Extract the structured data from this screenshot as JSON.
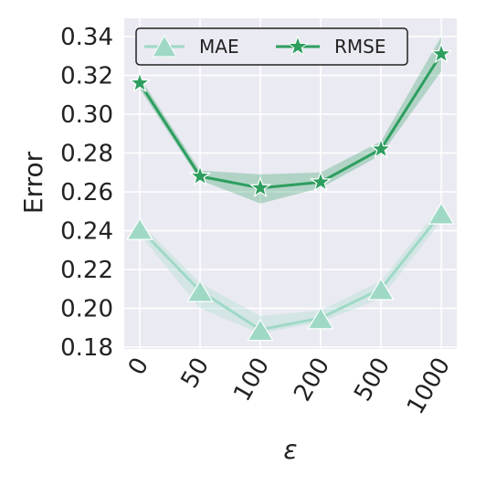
{
  "chart_data": {
    "type": "line",
    "categories": [
      "0",
      "50",
      "100",
      "200",
      "500",
      "1000"
    ],
    "xlabel": "ε",
    "ylabel": "Error",
    "ylim": [
      0.18,
      0.35
    ],
    "yticks": [
      "0.18",
      "0.20",
      "0.22",
      "0.24",
      "0.26",
      "0.28",
      "0.30",
      "0.32",
      "0.34"
    ],
    "grid": true,
    "legend_position": "top",
    "series": [
      {
        "name": "MAE",
        "marker": "triangle",
        "color": "#9fd9c6",
        "values": [
          0.241,
          0.209,
          0.189,
          0.195,
          0.21,
          0.249
        ],
        "band_low": [
          0.238,
          0.2,
          0.187,
          0.193,
          0.205,
          0.245
        ],
        "band_high": [
          0.244,
          0.213,
          0.196,
          0.199,
          0.214,
          0.253
        ]
      },
      {
        "name": "RMSE",
        "marker": "star",
        "color": "#2e9e5f",
        "values": [
          0.316,
          0.268,
          0.262,
          0.265,
          0.282,
          0.331
        ],
        "band_low": [
          0.313,
          0.266,
          0.254,
          0.262,
          0.279,
          0.322
        ],
        "band_high": [
          0.319,
          0.271,
          0.269,
          0.27,
          0.286,
          0.34
        ]
      }
    ]
  }
}
